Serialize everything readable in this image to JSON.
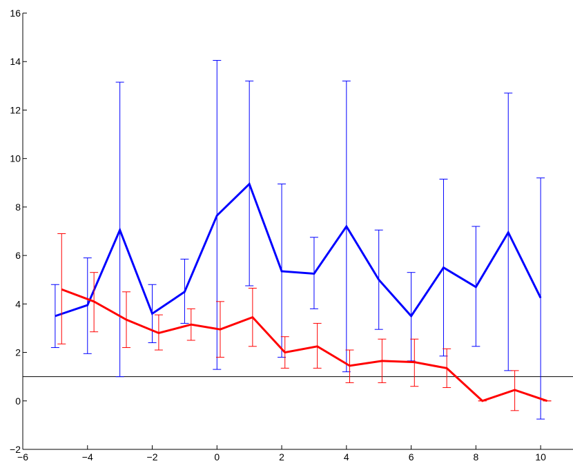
{
  "chart_data": {
    "type": "line",
    "title": "",
    "xlabel": "",
    "ylabel": "",
    "xlim": [
      -6,
      11
    ],
    "ylim": [
      -2,
      16
    ],
    "grid": false,
    "legend": "none",
    "x_ticks": [
      -6,
      -4,
      -2,
      0,
      2,
      4,
      6,
      8,
      10
    ],
    "y_ticks": [
      -2,
      0,
      2,
      4,
      6,
      8,
      10,
      12,
      14,
      16
    ],
    "x_tick_labels": [
      "−6",
      "−4",
      "−2",
      "0",
      "2",
      "4",
      "6",
      "8",
      "10"
    ],
    "y_tick_labels": [
      "−2",
      "0",
      "2",
      "4",
      "6",
      "8",
      "10",
      "12",
      "14",
      "16"
    ],
    "reference_line": {
      "y": 1,
      "color": "#000000"
    },
    "series": [
      {
        "color": "#0000ff",
        "x": [
          -5,
          -4,
          -3,
          -2,
          -1,
          0,
          1,
          2,
          3,
          4,
          5,
          6,
          7,
          8,
          9,
          10
        ],
        "y": [
          3.5,
          3.95,
          7.05,
          3.6,
          4.5,
          7.65,
          8.95,
          5.35,
          5.25,
          7.2,
          5.0,
          3.5,
          5.5,
          4.7,
          6.95,
          4.25
        ],
        "lower": [
          2.2,
          1.95,
          1.0,
          2.4,
          3.2,
          1.3,
          4.75,
          1.8,
          3.8,
          1.2,
          2.95,
          1.65,
          1.85,
          2.25,
          1.25,
          -0.75
        ],
        "upper": [
          4.8,
          5.9,
          13.15,
          4.8,
          5.85,
          14.05,
          13.2,
          8.95,
          6.75,
          13.2,
          7.05,
          5.3,
          9.15,
          7.2,
          12.7,
          9.2
        ]
      },
      {
        "color": "#ff0000",
        "x": [
          -4.8,
          -3.8,
          -2.8,
          -1.8,
          -0.8,
          0.1,
          1.1,
          2.1,
          3.1,
          4.1,
          5.1,
          6.1,
          7.1,
          8.2,
          9.2,
          10.2
        ],
        "y": [
          4.6,
          4.1,
          3.35,
          2.8,
          3.15,
          2.95,
          3.45,
          2.0,
          2.25,
          1.45,
          1.65,
          1.6,
          1.35,
          0.0,
          0.45,
          0.0
        ],
        "lower": [
          2.35,
          2.85,
          2.2,
          2.1,
          2.5,
          1.8,
          2.25,
          1.35,
          1.35,
          0.75,
          0.75,
          0.6,
          0.55,
          0.0,
          -0.4,
          0.0
        ],
        "upper": [
          6.9,
          5.3,
          4.5,
          3.55,
          3.8,
          4.1,
          4.65,
          2.65,
          3.2,
          2.1,
          2.55,
          2.55,
          2.15,
          0.0,
          1.25,
          0.0
        ]
      }
    ]
  }
}
